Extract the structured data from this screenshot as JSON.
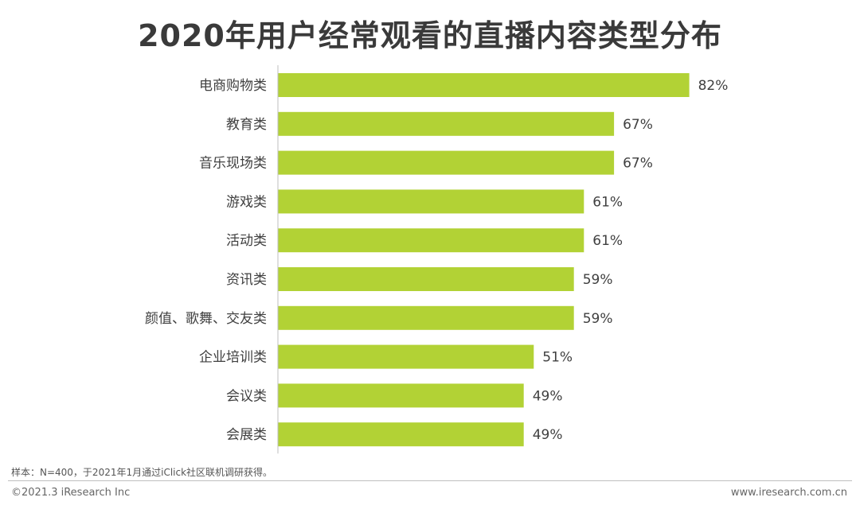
{
  "title": "2020年用户经常观看的直播内容类型分布",
  "footnote": "样本：N=400，于2021年1月通过iClick社区联机调研获得。",
  "copyright": "©2021.3 iResearch Inc",
  "website": "www.iresearch.com.cn",
  "colors": {
    "bar": "#b2d235",
    "axis": "#bfbfbf",
    "text": "#404040"
  },
  "chart_data": {
    "type": "bar",
    "orientation": "horizontal",
    "categories": [
      "电商购物类",
      "教育类",
      "音乐现场类",
      "游戏类",
      "活动类",
      "资讯类",
      "颜值、歌舞、交友类",
      "企业培训类",
      "会议类",
      "会展类"
    ],
    "values": [
      82,
      67,
      67,
      61,
      61,
      59,
      59,
      51,
      49,
      49
    ],
    "value_labels": [
      "82%",
      "67%",
      "67%",
      "61%",
      "61%",
      "59%",
      "59%",
      "51%",
      "49%",
      "49%"
    ],
    "xlim": [
      0,
      100
    ],
    "grid": false,
    "legend": "none"
  }
}
